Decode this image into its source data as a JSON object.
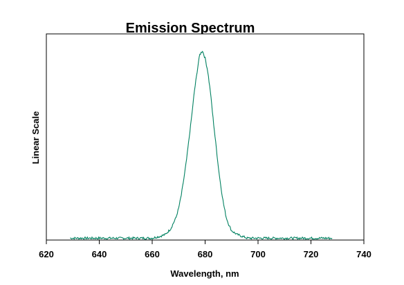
{
  "chart_data": {
    "type": "line",
    "title": "Emission Spectrum",
    "xlabel": "Wavelength, nm",
    "ylabel": "Linear Scale",
    "xlim": [
      620,
      740
    ],
    "ylim": [
      0,
      1.1
    ],
    "x_ticks": [
      "620",
      "640",
      "660",
      "680",
      "700",
      "720",
      "740"
    ],
    "grid": false,
    "legend": "none",
    "series": [
      {
        "color": "#008060",
        "x": [
          629,
          635,
          640,
          645,
          650,
          655,
          660,
          663,
          665,
          667,
          669,
          670,
          671,
          672,
          673,
          674,
          675,
          676,
          677,
          677.5,
          678,
          678.5,
          679,
          679.5,
          680,
          681,
          682,
          683,
          684,
          685,
          686,
          687,
          688,
          689,
          690,
          692,
          694,
          696,
          700,
          705,
          710,
          715,
          720,
          725,
          728
        ],
        "y": [
          0.01,
          0.01,
          0.01,
          0.01,
          0.01,
          0.01,
          0.01,
          0.02,
          0.03,
          0.06,
          0.12,
          0.17,
          0.24,
          0.33,
          0.43,
          0.55,
          0.67,
          0.8,
          0.9,
          0.95,
          0.99,
          1.0,
          1.01,
          0.99,
          0.97,
          0.9,
          0.79,
          0.65,
          0.52,
          0.39,
          0.28,
          0.19,
          0.12,
          0.08,
          0.05,
          0.03,
          0.02,
          0.01,
          0.01,
          0.01,
          0.01,
          0.01,
          0.01,
          0.01,
          0.01
        ]
      }
    ]
  }
}
